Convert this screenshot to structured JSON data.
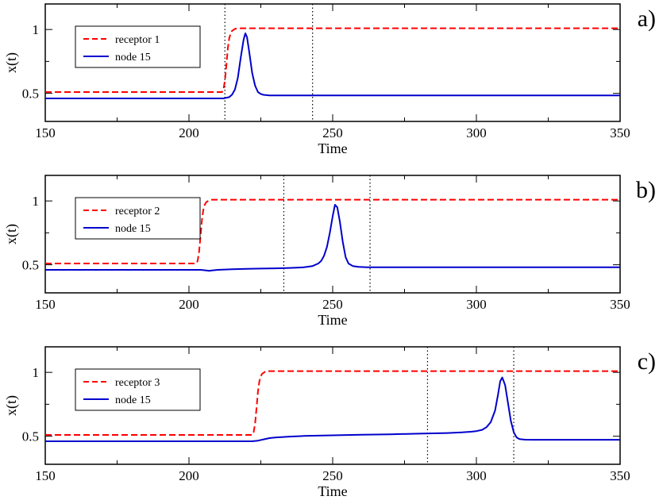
{
  "chart_data": [
    {
      "type": "line",
      "panel_label": "a)",
      "xlabel": "Time",
      "ylabel": "x(t)",
      "xlim": [
        150,
        350
      ],
      "ylim": [
        0.28,
        1.2
      ],
      "xticks": [
        150,
        200,
        250,
        300,
        350
      ],
      "yticks": [
        0.5,
        1
      ],
      "ytick_labels": [
        "0.5",
        "1"
      ],
      "vlines": [
        212.5,
        243
      ],
      "legend_position": "top-left",
      "series": [
        {
          "name": "receptor 1",
          "color": "#ff0000",
          "style": "dashed",
          "x": [
            150,
            211.5,
            212,
            212.5,
            213,
            213.5,
            214,
            214.5,
            215,
            216,
            217,
            350
          ],
          "y": [
            0.51,
            0.51,
            0.53,
            0.6,
            0.72,
            0.85,
            0.93,
            0.97,
            0.99,
            1.005,
            1.01,
            1.01
          ]
        },
        {
          "name": "node 15",
          "color": "#0000cc",
          "style": "solid",
          "x": [
            150,
            212,
            214,
            215,
            216,
            217,
            218,
            219,
            219.6,
            220.2,
            221,
            222,
            223,
            224,
            225,
            226,
            228,
            232,
            350
          ],
          "y": [
            0.46,
            0.46,
            0.47,
            0.49,
            0.53,
            0.62,
            0.78,
            0.92,
            0.97,
            0.94,
            0.82,
            0.66,
            0.56,
            0.51,
            0.495,
            0.488,
            0.484,
            0.483,
            0.483
          ]
        }
      ]
    },
    {
      "type": "line",
      "panel_label": "b)",
      "xlabel": "Time",
      "ylabel": "x(t)",
      "xlim": [
        150,
        350
      ],
      "ylim": [
        0.28,
        1.2
      ],
      "xticks": [
        150,
        200,
        250,
        300,
        350
      ],
      "yticks": [
        0.5,
        1
      ],
      "ytick_labels": [
        "0.5",
        "1"
      ],
      "vlines": [
        233,
        263
      ],
      "legend_position": "top-left",
      "series": [
        {
          "name": "receptor 2",
          "color": "#ff0000",
          "style": "dashed",
          "x": [
            150,
            202.5,
            203,
            203.5,
            204,
            204.5,
            205,
            205.5,
            206,
            207,
            208,
            350
          ],
          "y": [
            0.51,
            0.51,
            0.53,
            0.6,
            0.72,
            0.85,
            0.93,
            0.97,
            0.99,
            1.005,
            1.01,
            1.01
          ]
        },
        {
          "name": "node 15",
          "color": "#0000cc",
          "style": "solid",
          "x": [
            150,
            204,
            206,
            207,
            208,
            210,
            215,
            220,
            225,
            230,
            235,
            240,
            243,
            245,
            246,
            247,
            248,
            249,
            250,
            250.8,
            251.6,
            252.5,
            253.5,
            254.5,
            255.5,
            257,
            259,
            262,
            350
          ],
          "y": [
            0.46,
            0.46,
            0.455,
            0.452,
            0.455,
            0.46,
            0.465,
            0.468,
            0.47,
            0.472,
            0.475,
            0.48,
            0.49,
            0.51,
            0.53,
            0.57,
            0.64,
            0.75,
            0.88,
            0.97,
            0.95,
            0.84,
            0.68,
            0.56,
            0.51,
            0.49,
            0.483,
            0.48,
            0.48
          ]
        }
      ]
    },
    {
      "type": "line",
      "panel_label": "c)",
      "xlabel": "Time",
      "ylabel": "x(t)",
      "xlim": [
        150,
        350
      ],
      "ylim": [
        0.28,
        1.2
      ],
      "xticks": [
        150,
        200,
        250,
        300,
        350
      ],
      "yticks": [
        0.5,
        1
      ],
      "ytick_labels": [
        "0.5",
        "1"
      ],
      "vlines": [
        283,
        313
      ],
      "legend_position": "top-left",
      "series": [
        {
          "name": "receptor 3",
          "color": "#ff0000",
          "style": "dashed",
          "x": [
            150,
            222,
            222.5,
            223,
            223.5,
            224,
            224.5,
            225,
            225.5,
            226.5,
            227.5,
            350
          ],
          "y": [
            0.51,
            0.51,
            0.53,
            0.6,
            0.72,
            0.85,
            0.93,
            0.97,
            0.99,
            1.005,
            1.01,
            1.01
          ]
        },
        {
          "name": "node 15",
          "color": "#0000cc",
          "style": "solid",
          "x": [
            150,
            222,
            224,
            226,
            228,
            230,
            235,
            240,
            250,
            260,
            270,
            280,
            290,
            295,
            298,
            300,
            302,
            303.5,
            305,
            306.5,
            307.5,
            308.3,
            309,
            310,
            311,
            312,
            313,
            314,
            315,
            317,
            320,
            350
          ],
          "y": [
            0.46,
            0.46,
            0.465,
            0.475,
            0.485,
            0.49,
            0.497,
            0.502,
            0.507,
            0.511,
            0.515,
            0.52,
            0.525,
            0.53,
            0.535,
            0.54,
            0.55,
            0.57,
            0.61,
            0.7,
            0.82,
            0.93,
            0.96,
            0.9,
            0.76,
            0.62,
            0.53,
            0.49,
            0.477,
            0.473,
            0.472,
            0.472
          ]
        }
      ]
    }
  ]
}
